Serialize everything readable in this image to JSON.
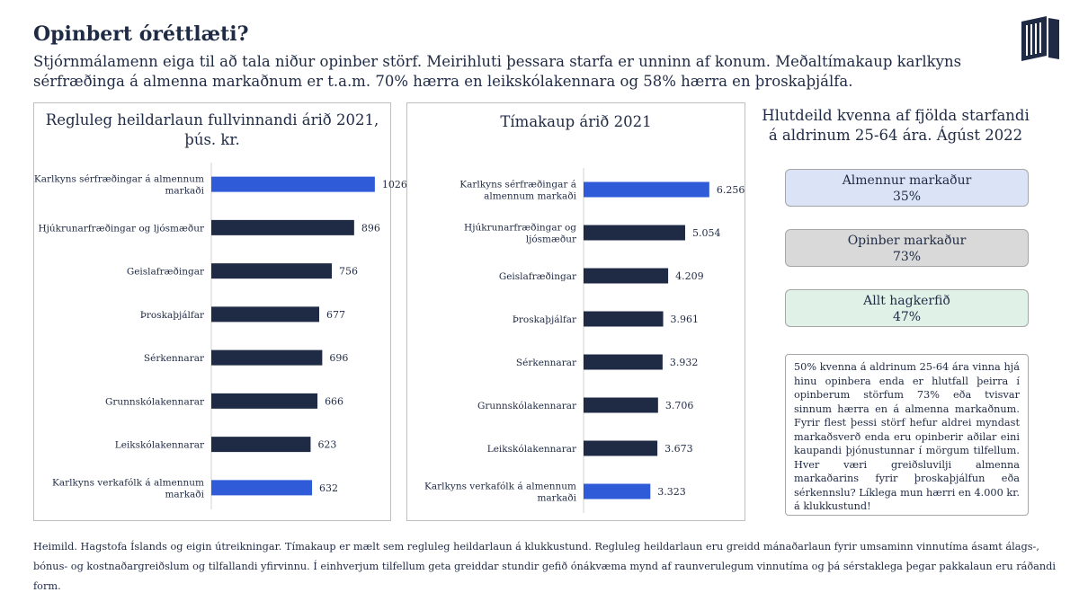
{
  "header": {
    "title": "Opinbert óréttlæti?",
    "subtitle": "Stjórnmálamenn eiga til að tala niður opinber störf. Meirihluti þessara starfa er unninn af konum. Meðaltímakaup karlkyns sérfræðinga á almenna markaðnum er t.a.m. 70% hærra en leikskólakennara og 58% hærra en þroskaþjálfa."
  },
  "colors": {
    "highlight": "#2f5bd8",
    "default": "#1f2a44",
    "almennur": "#dbe3f7",
    "opinber": "#d9d9d9",
    "allt": "#e0f1e8"
  },
  "chart_data": [
    {
      "type": "bar",
      "orientation": "horizontal",
      "title": "Regluleg heildarlaun fullvinnandi árið 2021, þús. kr.",
      "categories": [
        "Karlkyns sérfræðingar á almennum markaði",
        "Hjúkrunarfræðingar og ljósmæður",
        "Geislafræðingar",
        "Þroskaþjálfar",
        "Sérkennarar",
        "Grunnskólakennarar",
        "Leikskólakennarar",
        "Karlkyns verkafólk á almennum markaði"
      ],
      "values": [
        1026,
        896,
        756,
        677,
        696,
        666,
        623,
        632
      ],
      "value_labels": [
        "1026",
        "896",
        "756",
        "677",
        "696",
        "666",
        "623",
        "632"
      ],
      "highlighted": [
        true,
        false,
        false,
        false,
        false,
        false,
        false,
        true
      ],
      "xlim": [
        0,
        1100
      ]
    },
    {
      "type": "bar",
      "orientation": "horizontal",
      "title": "Tímakaup árið 2021",
      "categories": [
        "Karlkyns sérfræðingar á almennum markaði",
        "Hjúkrunarfræðingar og ljósmæður",
        "Geislafræðingar",
        "Þroskaþjálfar",
        "Sérkennarar",
        "Grunnskólakennarar",
        "Leikskólakennarar",
        "Karlkyns verkafólk á almennum markaði"
      ],
      "values": [
        6256,
        5054,
        4209,
        3961,
        3932,
        3706,
        3673,
        3323
      ],
      "value_labels": [
        "6.256",
        "5.054",
        "4.209",
        "3.961",
        "3.932",
        "3.706",
        "3.673",
        "3.323"
      ],
      "highlighted": [
        true,
        false,
        false,
        false,
        false,
        false,
        false,
        true
      ],
      "xlim": [
        0,
        6800
      ]
    }
  ],
  "shares": {
    "title": "Hlutdeild kvenna af fjölda starfandi á aldrinum 25-64 ára. Ágúst 2022",
    "items": [
      {
        "label": "Almennur markaður",
        "value": "35%"
      },
      {
        "label": "Opinber markaður",
        "value": "73%"
      },
      {
        "label": "Allt hagkerfið",
        "value": "47%"
      }
    ],
    "note": "50% kvenna á aldrinum 25-64 ára vinna hjá hinu opinbera enda er hlutfall þeirra í opinberum störfum 73% eða tvisvar sinnum hærra en á almenna markaðnum. Fyrir flest þessi störf hefur aldrei myndast markaðsverð enda eru opinberir aðilar eini kaupandi þjónustunnar í mörgum tilfellum. Hver væri greiðsluvilji almenna markaðarins fyrir þroskaþjálfun eða sérkennslu? Líklega mun hærri en 4.000 kr. á klukkustund!"
  },
  "footer": {
    "text": "Heimild. Hagstofa Íslands og eigin útreikningar. Tímakaup er mælt sem regluleg heildarlaun á klukkustund. Regluleg heildarlaun eru greidd mánaðarlaun fyrir umsaminn vinnutíma ásamt álags-, bónus- og kostnaðargreiðslum og tilfallandi yfirvinnu. Í einhverjum tilfellum geta greiddar stundir gefið ónákvæma mynd af raunverulegum vinnutíma og þá sérstaklega þegar pakkalaun eru ráðandi form."
  }
}
